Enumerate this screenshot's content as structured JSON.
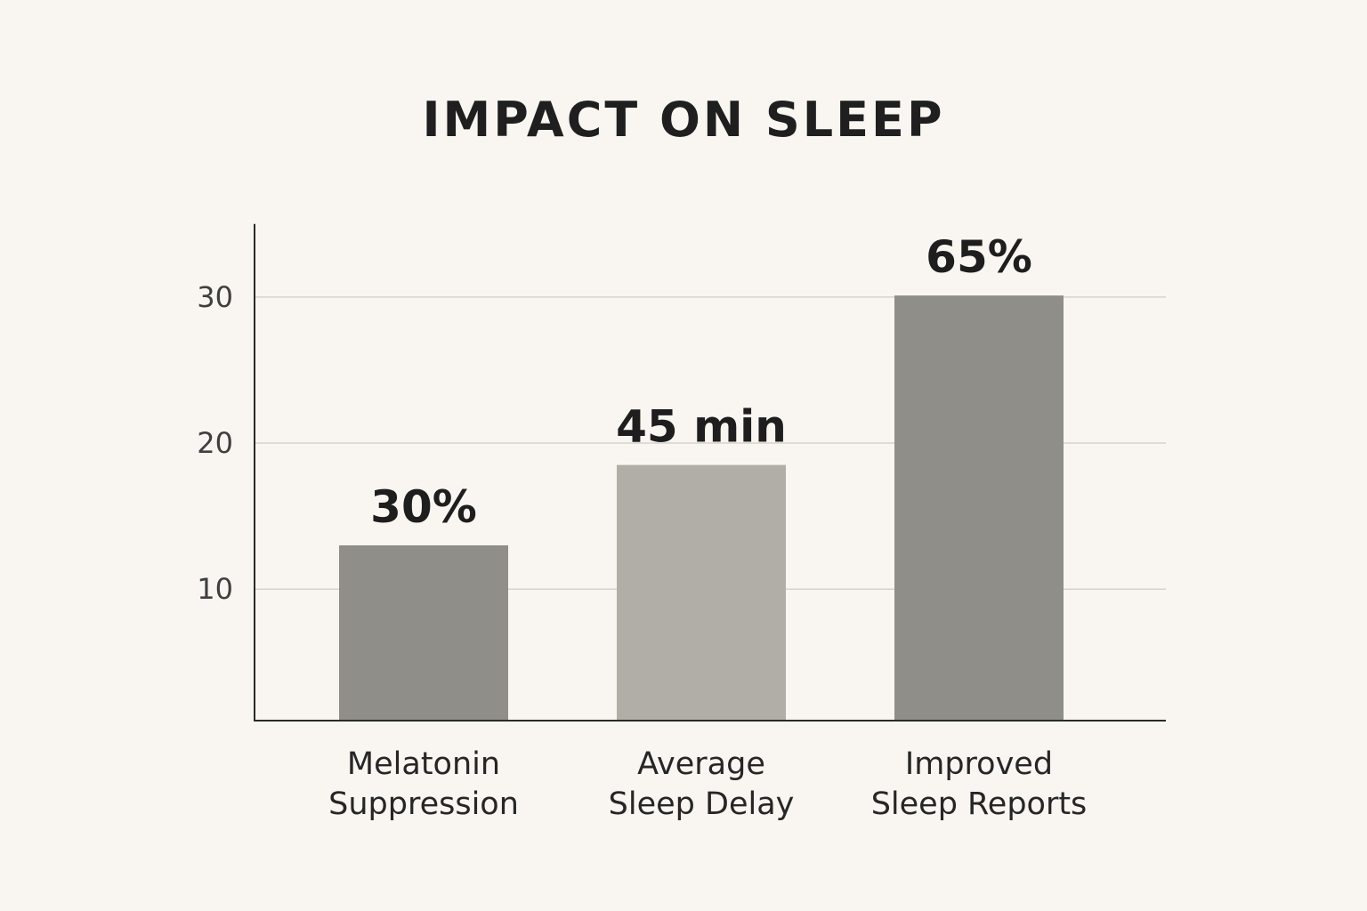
{
  "chart_data": {
    "type": "bar",
    "title": "IMPACT ON SLEEP",
    "xlabel": "",
    "ylabel": "",
    "categories": [
      [
        "Melatonin",
        "Suppression"
      ],
      [
        "Average",
        "Sleep Delay"
      ],
      [
        "Improved",
        "Sleep Reports"
      ]
    ],
    "values": [
      13,
      18.5,
      30.1
    ],
    "data_labels": [
      "30%",
      "45 min",
      "65%"
    ],
    "ylim": [
      1,
      35
    ],
    "yticks": [
      10,
      20,
      30
    ],
    "grid": true,
    "legend": "none",
    "colors": {
      "bars": [
        "#8f8e89",
        "#b1aea8",
        "#8f8e89"
      ],
      "background": "#f9f6f1",
      "grid": "#d6d3cd",
      "axis": "#2a2a2a"
    }
  }
}
